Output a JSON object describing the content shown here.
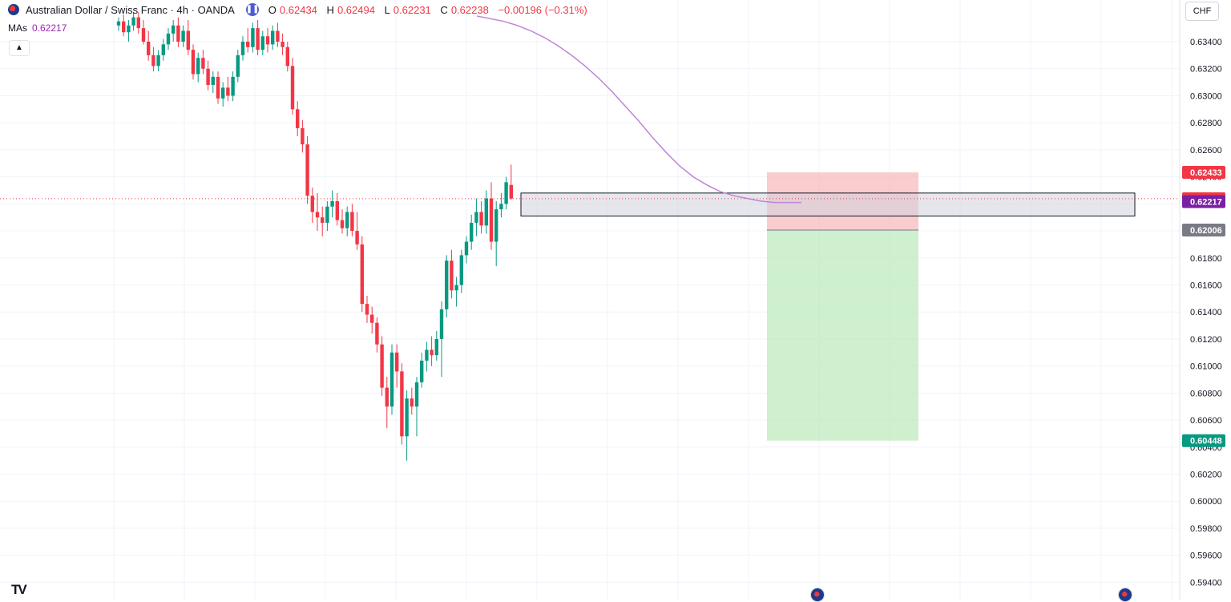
{
  "header": {
    "symbol": "Australian Dollar / Swiss Franc · 4h · OANDA",
    "ohlc": {
      "o_label": "O",
      "o": "0.62434",
      "h_label": "H",
      "h": "0.62494",
      "l_label": "L",
      "l": "0.62231",
      "c_label": "C",
      "c": "0.62238",
      "change": "−0.00196 (−0.31%)"
    }
  },
  "indicator": {
    "name": "MAs",
    "value": "0.62217",
    "color": "#9c27b0"
  },
  "currency_button": "CHF",
  "collapse_icon": "chevron-up-icon",
  "logo": "TV",
  "colors": {
    "up": "#089981",
    "down": "#f23645",
    "ma": "#c084d6",
    "stop_zone": "#f6b6b9",
    "target_zone": "#b9eab9",
    "box_border": "#131722"
  },
  "chart_data": {
    "type": "candlestick",
    "title": "Australian Dollar / Swiss Franc · 4h · OANDA",
    "xlabel": "",
    "ylabel": "",
    "ylim": [
      0.593,
      0.6363
    ],
    "y_ticks": [
      "0.63400",
      "0.63200",
      "0.63000",
      "0.62800",
      "0.62600",
      "0.62400",
      "0.62200",
      "0.62000",
      "0.61800",
      "0.61600",
      "0.61400",
      "0.61200",
      "0.61000",
      "0.60800",
      "0.60600",
      "0.60400",
      "0.60200",
      "0.60000",
      "0.59800",
      "0.59600",
      "0.59400"
    ],
    "grid": true,
    "candles_ohlc": [
      [
        0.6352,
        0.6358,
        0.6348,
        0.6355
      ],
      [
        0.6355,
        0.636,
        0.6344,
        0.6347
      ],
      [
        0.6347,
        0.6356,
        0.634,
        0.6352
      ],
      [
        0.6352,
        0.6362,
        0.6348,
        0.6358
      ],
      [
        0.6358,
        0.6362,
        0.6346,
        0.635
      ],
      [
        0.635,
        0.6356,
        0.6338,
        0.634
      ],
      [
        0.634,
        0.6348,
        0.6326,
        0.633
      ],
      [
        0.633,
        0.6336,
        0.6318,
        0.6322
      ],
      [
        0.6322,
        0.6334,
        0.6318,
        0.633
      ],
      [
        0.633,
        0.6342,
        0.6326,
        0.6338
      ],
      [
        0.6338,
        0.635,
        0.6334,
        0.6346
      ],
      [
        0.6346,
        0.6356,
        0.634,
        0.6352
      ],
      [
        0.6352,
        0.6358,
        0.6336,
        0.634
      ],
      [
        0.634,
        0.6352,
        0.6336,
        0.6348
      ],
      [
        0.6348,
        0.6356,
        0.633,
        0.6334
      ],
      [
        0.6334,
        0.6338,
        0.6312,
        0.6316
      ],
      [
        0.6316,
        0.6332,
        0.631,
        0.6328
      ],
      [
        0.6328,
        0.6334,
        0.6316,
        0.632
      ],
      [
        0.632,
        0.6326,
        0.6304,
        0.6308
      ],
      [
        0.6308,
        0.6318,
        0.6302,
        0.6314
      ],
      [
        0.6314,
        0.6318,
        0.6294,
        0.6298
      ],
      [
        0.6298,
        0.631,
        0.6292,
        0.6306
      ],
      [
        0.6306,
        0.6314,
        0.6296,
        0.63
      ],
      [
        0.63,
        0.6318,
        0.6296,
        0.6314
      ],
      [
        0.6314,
        0.6334,
        0.631,
        0.633
      ],
      [
        0.633,
        0.6344,
        0.6326,
        0.634
      ],
      [
        0.634,
        0.635,
        0.6332,
        0.6336
      ],
      [
        0.6336,
        0.6354,
        0.6332,
        0.635
      ],
      [
        0.635,
        0.6356,
        0.633,
        0.6334
      ],
      [
        0.6334,
        0.6348,
        0.633,
        0.6344
      ],
      [
        0.6344,
        0.635,
        0.6332,
        0.6338
      ],
      [
        0.6338,
        0.6352,
        0.6334,
        0.6348
      ],
      [
        0.6348,
        0.6354,
        0.6336,
        0.634
      ],
      [
        0.634,
        0.6346,
        0.633,
        0.6336
      ],
      [
        0.6336,
        0.634,
        0.6318,
        0.6322
      ],
      [
        0.6322,
        0.6328,
        0.6286,
        0.629
      ],
      [
        0.629,
        0.6296,
        0.627,
        0.6276
      ],
      [
        0.6276,
        0.6282,
        0.6258,
        0.6264
      ],
      [
        0.6264,
        0.627,
        0.622,
        0.6226
      ],
      [
        0.6226,
        0.6232,
        0.6206,
        0.6214
      ],
      [
        0.6214,
        0.6228,
        0.62,
        0.621
      ],
      [
        0.621,
        0.6218,
        0.6196,
        0.6206
      ],
      [
        0.6206,
        0.6222,
        0.62,
        0.6218
      ],
      [
        0.6218,
        0.623,
        0.621,
        0.6222
      ],
      [
        0.6222,
        0.6228,
        0.6204,
        0.6208
      ],
      [
        0.6208,
        0.6216,
        0.6198,
        0.6202
      ],
      [
        0.6202,
        0.6218,
        0.6196,
        0.6214
      ],
      [
        0.6214,
        0.622,
        0.6196,
        0.62
      ],
      [
        0.62,
        0.6214,
        0.6186,
        0.619
      ],
      [
        0.619,
        0.6196,
        0.614,
        0.6146
      ],
      [
        0.6146,
        0.6152,
        0.6132,
        0.6138
      ],
      [
        0.6138,
        0.6144,
        0.6124,
        0.6132
      ],
      [
        0.6132,
        0.6136,
        0.611,
        0.6116
      ],
      [
        0.6116,
        0.6122,
        0.6078,
        0.6084
      ],
      [
        0.6084,
        0.6092,
        0.6054,
        0.607
      ],
      [
        0.607,
        0.6116,
        0.6064,
        0.611
      ],
      [
        0.611,
        0.6116,
        0.6084,
        0.6096
      ],
      [
        0.6096,
        0.6102,
        0.6042,
        0.6048
      ],
      [
        0.6048,
        0.6082,
        0.603,
        0.6076
      ],
      [
        0.6076,
        0.6084,
        0.6064,
        0.607
      ],
      [
        0.607,
        0.6092,
        0.6048,
        0.6088
      ],
      [
        0.6088,
        0.611,
        0.6084,
        0.6104
      ],
      [
        0.6104,
        0.6118,
        0.6096,
        0.6112
      ],
      [
        0.6112,
        0.6122,
        0.61,
        0.6108
      ],
      [
        0.6108,
        0.6126,
        0.6104,
        0.612
      ],
      [
        0.612,
        0.6148,
        0.6092,
        0.6142
      ],
      [
        0.6142,
        0.6182,
        0.6136,
        0.6178
      ],
      [
        0.6178,
        0.6186,
        0.615,
        0.6156
      ],
      [
        0.6156,
        0.6166,
        0.6144,
        0.616
      ],
      [
        0.616,
        0.6186,
        0.6154,
        0.6182
      ],
      [
        0.6182,
        0.6196,
        0.6176,
        0.6192
      ],
      [
        0.6192,
        0.6212,
        0.6186,
        0.6206
      ],
      [
        0.6206,
        0.6224,
        0.6196,
        0.6214
      ],
      [
        0.6214,
        0.6222,
        0.6198,
        0.6204
      ],
      [
        0.6204,
        0.623,
        0.6198,
        0.6224
      ],
      [
        0.6224,
        0.6236,
        0.6186,
        0.6192
      ],
      [
        0.6192,
        0.6222,
        0.6174,
        0.6216
      ],
      [
        0.6216,
        0.6228,
        0.621,
        0.622
      ],
      [
        0.622,
        0.624,
        0.6216,
        0.6236
      ],
      [
        0.6234,
        0.6249,
        0.6223,
        0.6224
      ]
    ],
    "moving_average": [
      0.6359,
      0.6357,
      0.6355,
      0.6352,
      0.6348,
      0.6343,
      0.6337,
      0.633,
      0.6322,
      0.6313,
      0.6303,
      0.6292,
      0.6281,
      0.6269,
      0.6258,
      0.6248,
      0.624,
      0.6234,
      0.6229,
      0.6226,
      0.6224,
      0.6222,
      0.6221,
      0.6221,
      0.6221
    ],
    "current_price": 0.62238,
    "ma_value": 0.62217,
    "price_tags": [
      {
        "value": "0.62433",
        "color": "#f23645"
      },
      {
        "value": "0.62238",
        "color": "#f23645"
      },
      {
        "value": "0.62217",
        "color": "#7b1fa2"
      },
      {
        "value": "0.62006",
        "color": "#787b86"
      },
      {
        "value": "0.60448",
        "color": "#089981"
      }
    ],
    "position": {
      "side": "short",
      "stop": 0.62433,
      "entry": 0.62006,
      "target": 0.60448
    },
    "zone_box": {
      "top": 0.6228,
      "bottom": 0.6211
    }
  }
}
